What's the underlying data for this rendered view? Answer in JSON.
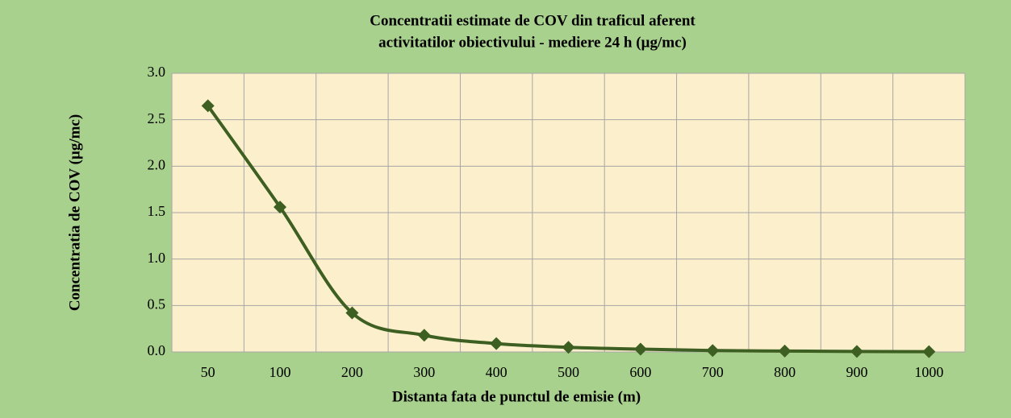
{
  "chart_data": {
    "type": "line",
    "title": [
      "Concentratii estimate de COV din traficul aferent",
      "activitatilor obiectivului - mediere 24 h (µg/mc)"
    ],
    "x_label": "Distanta fata de punctul de emisie (m)",
    "y_label": "Concentratia de COV (µg/mc)",
    "categories": [
      "50",
      "100",
      "200",
      "300",
      "400",
      "500",
      "600",
      "700",
      "800",
      "900",
      "1000"
    ],
    "series": [
      {
        "name": "COV",
        "color": "#3d5f22",
        "values": [
          2.65,
          1.56,
          0.42,
          0.18,
          0.09,
          0.05,
          0.03,
          0.015,
          0.01,
          0.005,
          0.003
        ]
      }
    ],
    "ylim": [
      0,
      3
    ],
    "yticks": [
      {
        "value": 0,
        "label": "0.0"
      },
      0.5,
      {
        "value": 1,
        "label": "1.0"
      },
      1.5,
      {
        "value": 2,
        "label": "2.0"
      },
      2.5,
      {
        "value": 3,
        "label": "3.0"
      }
    ],
    "grid": true,
    "smooth": true
  }
}
